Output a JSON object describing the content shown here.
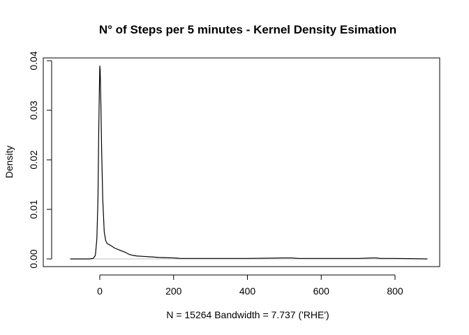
{
  "chart_data": {
    "type": "line",
    "title": "N° of Steps per 5 minutes - Kernel Density Esimation",
    "xlabel": "N = 15264   Bandwidth = 7.737 ('RHE')",
    "ylabel": "Density",
    "xlim": [
      -80,
      888
    ],
    "ylim": [
      0,
      0.0405
    ],
    "x_ticks": [
      0,
      200,
      400,
      600,
      800
    ],
    "x_tick_labels": [
      "0",
      "200",
      "400",
      "600",
      "800"
    ],
    "y_ticks": [
      0.0,
      0.01,
      0.02,
      0.03,
      0.04
    ],
    "y_tick_labels": [
      "0.00",
      "0.01",
      "0.02",
      "0.03",
      "0.04"
    ],
    "grid": false,
    "legend": "none",
    "series": [
      {
        "x": [
          -80,
          -30,
          -18,
          -12,
          -8,
          -5,
          -3,
          -1,
          0,
          1,
          3,
          5,
          8,
          12,
          16,
          20,
          25,
          30,
          40,
          50,
          60,
          70,
          80,
          90,
          100,
          120,
          140,
          160,
          180,
          200,
          220,
          250,
          300,
          350,
          400,
          450,
          500,
          520,
          540,
          600,
          700,
          740,
          750,
          760,
          800,
          888
        ],
        "y": [
          0,
          0,
          0.0001,
          0.0007,
          0.004,
          0.012,
          0.025,
          0.035,
          0.039,
          0.038,
          0.031,
          0.022,
          0.012,
          0.0055,
          0.0037,
          0.0031,
          0.0029,
          0.0027,
          0.0022,
          0.0019,
          0.0016,
          0.0013,
          0.0009,
          0.0007,
          0.0006,
          0.0005,
          0.0004,
          0.0003,
          0.00025,
          0.0002,
          0.0001,
          0.0001,
          0.0001,
          0.0001,
          0.0001,
          0.00015,
          0.0002,
          0.0002,
          0.0001,
          0.0001,
          0.0001,
          0.0002,
          0.0002,
          0.0001,
          0.0001,
          0
        ]
      }
    ]
  }
}
